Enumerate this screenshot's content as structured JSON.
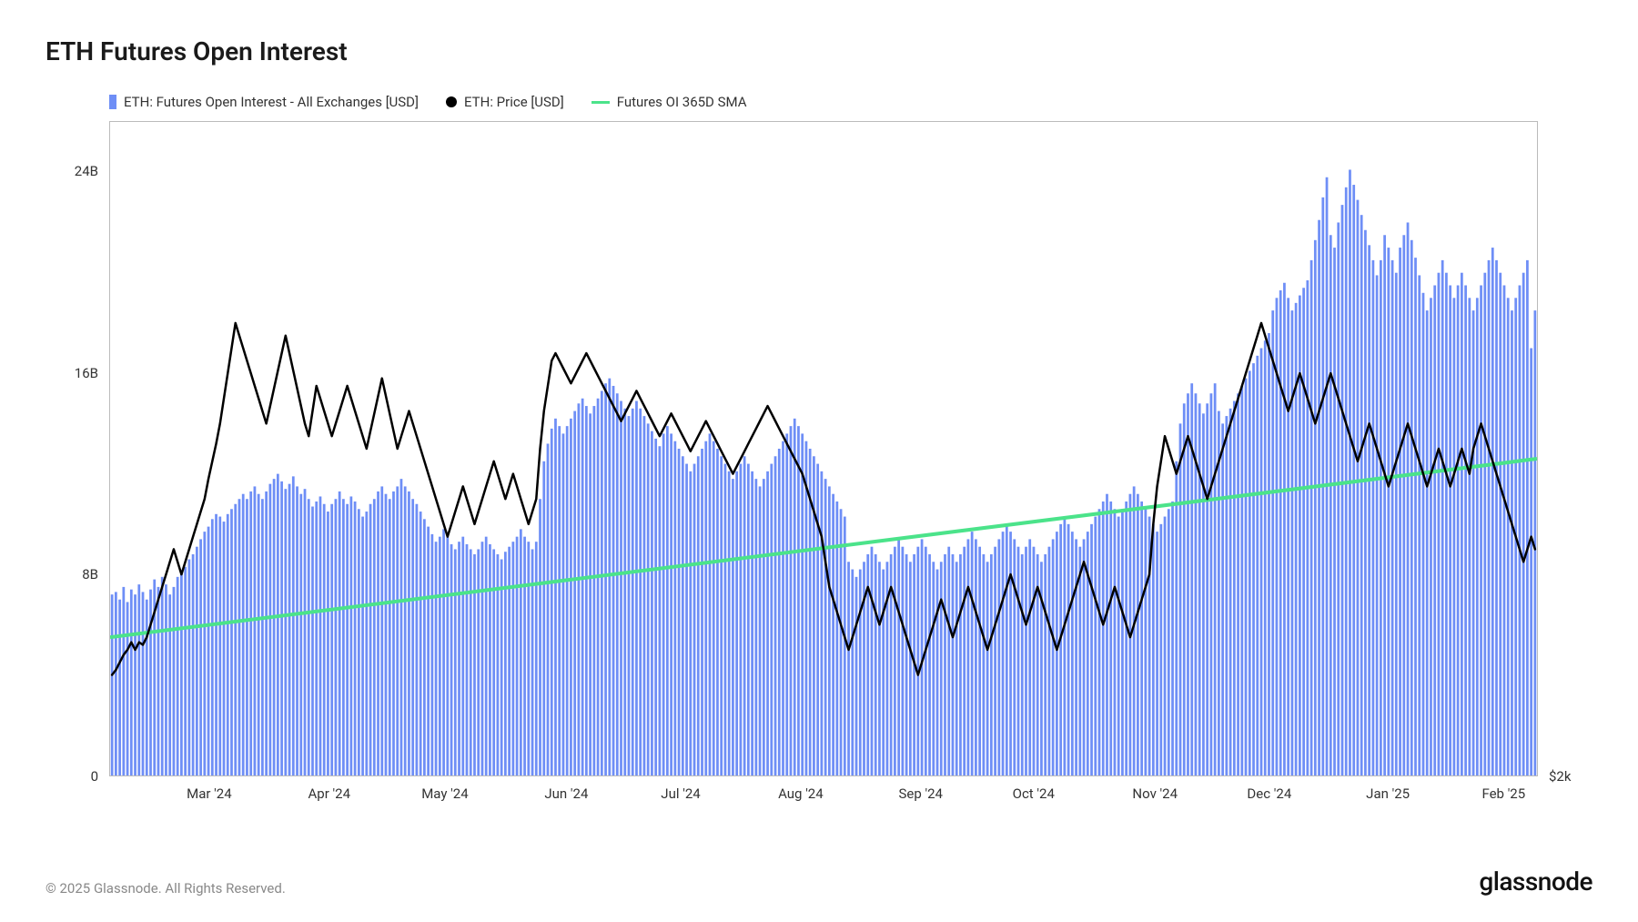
{
  "title": "ETH Futures Open Interest",
  "legend": {
    "bars": "ETH: Futures Open Interest - All Exchanges [USD]",
    "price": "ETH: Price [USD]",
    "sma": "Futures OI 365D SMA"
  },
  "chart": {
    "type": "bar+line+line",
    "y_left": {
      "min": 0,
      "max": 26,
      "ticks": [
        0,
        8,
        16,
        24
      ],
      "tick_labels": [
        "0",
        "8B",
        "16B",
        "24B"
      ]
    },
    "y_right": {
      "label_at_bottom": "$2k"
    },
    "x_labels": [
      "Mar '24",
      "Apr '24",
      "May '24",
      "Jun '24",
      "Jul '24",
      "Aug '24",
      "Sep '24",
      "Oct '24",
      "Nov '24",
      "Dec '24",
      "Jan '25",
      "Feb '25"
    ],
    "x_label_positions_pct": [
      7,
      15.4,
      23.5,
      32,
      40,
      48.4,
      56.8,
      64.7,
      73.2,
      81.2,
      89.5,
      97.6
    ],
    "colors": {
      "bar": "#6e8ef6",
      "price_line": "#000000",
      "sma_line": "#4be38a",
      "background": "#ffffff",
      "border": "#bbbbbb",
      "text": "#333333"
    },
    "bar_gap_ratio": 0.35,
    "price_line_width": 2.5,
    "sma_line_width": 2.5,
    "n_points": 370,
    "bars_oi": [
      7.2,
      7.3,
      7.0,
      7.5,
      6.9,
      7.4,
      7.2,
      7.6,
      7.3,
      7.0,
      7.4,
      7.8,
      7.5,
      7.9,
      7.6,
      7.2,
      7.5,
      7.9,
      8.1,
      8.3,
      8.6,
      8.8,
      9.1,
      9.4,
      9.7,
      9.9,
      10.2,
      10.4,
      10.3,
      10.1,
      10.4,
      10.6,
      10.8,
      11.0,
      11.2,
      11.0,
      11.3,
      11.5,
      11.2,
      11.0,
      11.3,
      11.6,
      11.8,
      12.0,
      11.7,
      11.4,
      11.6,
      11.9,
      11.5,
      11.2,
      11.4,
      11.0,
      10.7,
      10.9,
      11.1,
      10.8,
      10.5,
      10.8,
      11.0,
      11.3,
      11.0,
      10.8,
      11.1,
      10.9,
      10.6,
      10.3,
      10.5,
      10.8,
      11.0,
      11.3,
      11.5,
      11.2,
      11.0,
      11.3,
      11.5,
      11.8,
      11.5,
      11.3,
      11.0,
      10.8,
      10.5,
      10.2,
      9.9,
      9.6,
      9.3,
      9.5,
      9.8,
      9.5,
      9.2,
      9.0,
      9.3,
      9.5,
      9.2,
      9.0,
      8.8,
      9.0,
      9.3,
      9.5,
      9.2,
      9.0,
      8.8,
      8.6,
      8.9,
      9.1,
      9.3,
      9.5,
      9.8,
      9.5,
      9.3,
      9.0,
      9.3,
      11.0,
      12.5,
      13.2,
      13.8,
      14.2,
      13.9,
      13.6,
      13.9,
      14.2,
      14.5,
      14.8,
      15.0,
      14.7,
      14.4,
      14.7,
      15.0,
      15.3,
      15.6,
      15.8,
      15.5,
      15.2,
      14.9,
      14.6,
      14.3,
      14.6,
      14.9,
      14.6,
      14.3,
      14.0,
      13.7,
      13.4,
      13.1,
      13.6,
      13.9,
      13.6,
      13.3,
      13.0,
      12.7,
      12.4,
      12.1,
      12.4,
      12.7,
      13.0,
      13.3,
      13.6,
      13.3,
      13.0,
      12.7,
      12.4,
      12.1,
      11.8,
      12.1,
      12.4,
      12.7,
      12.4,
      12.1,
      11.8,
      11.5,
      11.8,
      12.1,
      12.4,
      12.7,
      13.0,
      13.3,
      13.6,
      13.9,
      14.2,
      13.9,
      13.6,
      13.3,
      13.0,
      12.7,
      12.4,
      12.1,
      11.8,
      11.5,
      11.2,
      10.9,
      10.6,
      10.3,
      8.5,
      8.2,
      7.9,
      8.2,
      8.5,
      8.8,
      9.1,
      8.8,
      8.5,
      8.2,
      8.5,
      8.8,
      9.1,
      9.4,
      9.1,
      8.8,
      8.5,
      8.8,
      9.1,
      9.4,
      9.1,
      8.8,
      8.5,
      8.2,
      8.5,
      8.8,
      9.1,
      8.8,
      8.5,
      8.8,
      9.1,
      9.4,
      9.7,
      9.4,
      9.1,
      8.8,
      8.5,
      8.8,
      9.1,
      9.4,
      9.7,
      10.0,
      9.7,
      9.4,
      9.1,
      8.8,
      9.1,
      9.4,
      9.1,
      8.8,
      8.5,
      8.8,
      9.1,
      9.4,
      9.7,
      10.0,
      10.3,
      10.0,
      9.7,
      9.4,
      9.1,
      9.4,
      9.7,
      10.0,
      10.3,
      10.6,
      10.9,
      11.2,
      10.9,
      10.6,
      10.3,
      10.6,
      10.9,
      11.2,
      11.5,
      11.2,
      10.9,
      10.6,
      10.3,
      10.0,
      9.7,
      10.0,
      10.3,
      10.6,
      10.9,
      12.5,
      14.0,
      14.8,
      15.2,
      15.6,
      15.2,
      14.8,
      14.4,
      14.8,
      15.2,
      15.6,
      14.5,
      14.0,
      14.3,
      14.6,
      14.9,
      15.2,
      15.5,
      15.8,
      16.1,
      16.4,
      16.7,
      17.0,
      17.3,
      17.6,
      18.5,
      19.0,
      19.3,
      19.6,
      19.0,
      18.5,
      18.8,
      19.1,
      19.4,
      19.7,
      20.5,
      21.3,
      22.1,
      23.0,
      23.8,
      21.5,
      21.0,
      22.0,
      22.7,
      23.4,
      24.1,
      23.5,
      22.9,
      22.3,
      21.7,
      21.1,
      20.5,
      19.9,
      20.5,
      21.5,
      21.0,
      20.5,
      20.0,
      21.0,
      21.5,
      22.0,
      21.3,
      20.6,
      19.9,
      19.2,
      18.5,
      19.0,
      19.5,
      20.0,
      20.5,
      20.0,
      19.5,
      19.0,
      19.5,
      20.0,
      19.5,
      19.0,
      18.5,
      19.0,
      19.5,
      20.0,
      20.5,
      21.0,
      20.5,
      20.0,
      19.5,
      19.0,
      18.5,
      19.0,
      19.5,
      20.0,
      20.5,
      17.0,
      18.5
    ],
    "price_line": [
      4.0,
      4.2,
      4.5,
      4.8,
      5.0,
      5.3,
      5.0,
      5.3,
      5.2,
      5.5,
      6.0,
      6.5,
      7.0,
      7.5,
      8.0,
      8.5,
      9.0,
      8.5,
      8.0,
      8.5,
      9.0,
      9.5,
      10.0,
      10.5,
      11.0,
      11.8,
      12.5,
      13.2,
      14.0,
      15.0,
      16.0,
      17.0,
      18.0,
      17.5,
      17.0,
      16.5,
      16.0,
      15.5,
      15.0,
      14.5,
      14.0,
      14.7,
      15.4,
      16.1,
      16.8,
      17.5,
      16.8,
      16.1,
      15.4,
      14.7,
      14.0,
      13.5,
      14.5,
      15.5,
      15.0,
      14.5,
      14.0,
      13.5,
      14.0,
      14.5,
      15.0,
      15.5,
      15.0,
      14.5,
      14.0,
      13.5,
      13.0,
      13.7,
      14.4,
      15.1,
      15.8,
      15.1,
      14.4,
      13.7,
      13.0,
      13.5,
      14.0,
      14.5,
      14.0,
      13.5,
      13.0,
      12.5,
      12.0,
      11.5,
      11.0,
      10.5,
      10.0,
      9.5,
      10.0,
      10.5,
      11.0,
      11.5,
      11.0,
      10.5,
      10.0,
      10.5,
      11.0,
      11.5,
      12.0,
      12.5,
      12.0,
      11.5,
      11.0,
      11.5,
      12.0,
      11.5,
      11.0,
      10.5,
      10.0,
      10.5,
      11.0,
      13.0,
      14.5,
      15.5,
      16.5,
      16.8,
      16.5,
      16.2,
      15.9,
      15.6,
      15.9,
      16.2,
      16.5,
      16.8,
      16.5,
      16.2,
      15.9,
      15.6,
      15.3,
      15.0,
      14.7,
      14.4,
      14.1,
      14.4,
      14.7,
      15.0,
      15.3,
      15.0,
      14.7,
      14.4,
      14.1,
      13.8,
      13.5,
      13.8,
      14.1,
      14.4,
      14.1,
      13.8,
      13.5,
      13.2,
      12.9,
      13.2,
      13.5,
      13.8,
      14.1,
      13.8,
      13.5,
      13.2,
      12.9,
      12.6,
      12.3,
      12.0,
      12.3,
      12.6,
      12.9,
      13.2,
      13.5,
      13.8,
      14.1,
      14.4,
      14.7,
      14.4,
      14.1,
      13.8,
      13.5,
      13.2,
      12.9,
      12.6,
      12.3,
      12.0,
      11.5,
      11.0,
      10.5,
      10.0,
      9.5,
      8.5,
      7.5,
      7.0,
      6.5,
      6.0,
      5.5,
      5.0,
      5.5,
      6.0,
      6.5,
      7.0,
      7.5,
      7.0,
      6.5,
      6.0,
      6.5,
      7.0,
      7.5,
      7.0,
      6.5,
      6.0,
      5.5,
      5.0,
      4.5,
      4.0,
      4.5,
      5.0,
      5.5,
      6.0,
      6.5,
      7.0,
      6.5,
      6.0,
      5.5,
      6.0,
      6.5,
      7.0,
      7.5,
      7.0,
      6.5,
      6.0,
      5.5,
      5.0,
      5.5,
      6.0,
      6.5,
      7.0,
      7.5,
      8.0,
      7.5,
      7.0,
      6.5,
      6.0,
      6.5,
      7.0,
      7.5,
      7.0,
      6.5,
      6.0,
      5.5,
      5.0,
      5.5,
      6.0,
      6.5,
      7.0,
      7.5,
      8.0,
      8.5,
      8.0,
      7.5,
      7.0,
      6.5,
      6.0,
      6.5,
      7.0,
      7.5,
      7.0,
      6.5,
      6.0,
      5.5,
      6.0,
      6.5,
      7.0,
      7.5,
      8.0,
      10.0,
      11.5,
      12.5,
      13.5,
      13.0,
      12.5,
      12.0,
      12.5,
      13.0,
      13.5,
      13.0,
      12.5,
      12.0,
      11.5,
      11.0,
      11.5,
      12.0,
      12.5,
      13.0,
      13.5,
      14.0,
      14.5,
      15.0,
      15.5,
      16.0,
      16.5,
      17.0,
      17.5,
      18.0,
      17.5,
      17.0,
      16.5,
      16.0,
      15.5,
      15.0,
      14.5,
      15.0,
      15.5,
      16.0,
      15.5,
      15.0,
      14.5,
      14.0,
      14.5,
      15.0,
      15.5,
      16.0,
      15.5,
      15.0,
      14.5,
      14.0,
      13.5,
      13.0,
      12.5,
      13.0,
      13.5,
      14.0,
      13.5,
      13.0,
      12.5,
      12.0,
      11.5,
      12.0,
      12.5,
      13.0,
      13.5,
      14.0,
      13.5,
      13.0,
      12.5,
      12.0,
      11.5,
      12.0,
      12.5,
      13.0,
      12.5,
      12.0,
      11.5,
      12.0,
      12.5,
      13.0,
      12.5,
      12.0,
      13.0,
      13.5,
      14.0,
      13.5,
      13.0,
      12.5,
      12.0,
      11.5,
      11.0,
      10.5,
      10.0,
      9.5,
      9.0,
      8.5,
      9.0,
      9.5,
      9.0
    ],
    "sma_start": 5.5,
    "sma_end": 12.6
  },
  "footer": {
    "copyright": "© 2025 Glassnode. All Rights Reserved.",
    "brand": "glassnode"
  }
}
